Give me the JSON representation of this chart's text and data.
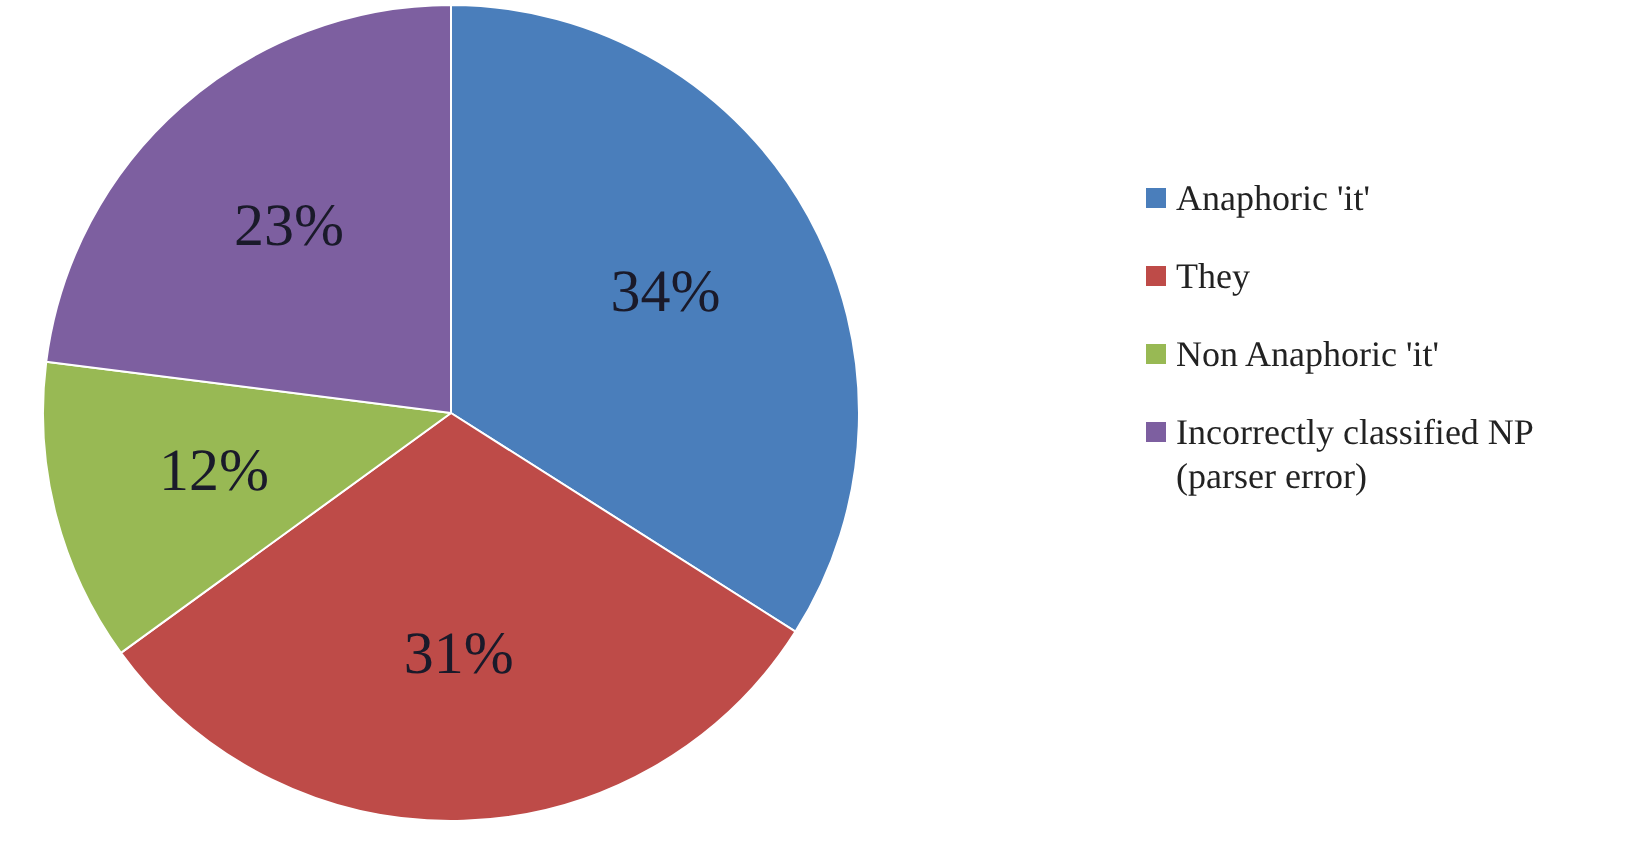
{
  "chart_data": {
    "type": "pie",
    "categories": [
      "Anaphoric 'it'",
      "They",
      "Non Anaphoric 'it'",
      "Incorrectly classified NP (parser error)"
    ],
    "values": [
      34,
      31,
      12,
      23
    ],
    "colors": [
      "#4a7ebb",
      "#be4b48",
      "#98b954",
      "#7d5fa0"
    ],
    "value_labels": [
      "34%",
      "31%",
      "12%",
      "23%"
    ],
    "legend": "right"
  }
}
